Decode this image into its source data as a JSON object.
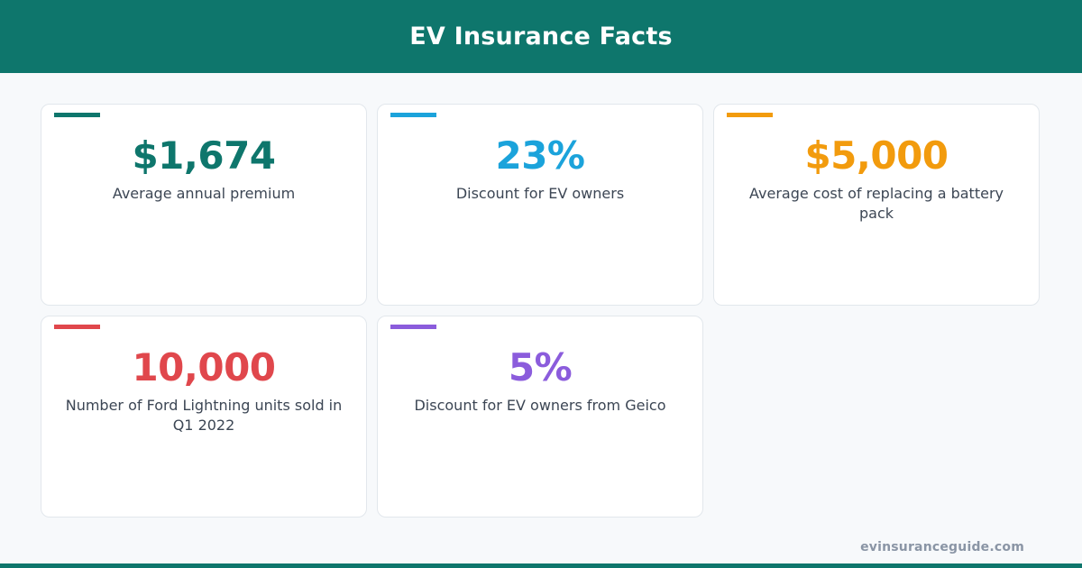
{
  "header": {
    "title": "EV Insurance Facts"
  },
  "colors": {
    "brand": "#0e766c"
  },
  "facts": [
    {
      "value": "$1,674",
      "label": "Average annual premium",
      "color": "#0e766c"
    },
    {
      "value": "23%",
      "label": "Discount for EV owners",
      "color": "#1ba3db"
    },
    {
      "value": "$5,000",
      "label": "Average cost of replacing a battery pack",
      "color": "#f29b0d"
    },
    {
      "value": "10,000",
      "label": "Number of Ford Lightning units sold in Q1 2022",
      "color": "#e0474c"
    },
    {
      "value": "5%",
      "label": "Discount for EV owners from Geico",
      "color": "#8b5cdc"
    }
  ],
  "footer": {
    "domain": "evinsuranceguide.com"
  }
}
